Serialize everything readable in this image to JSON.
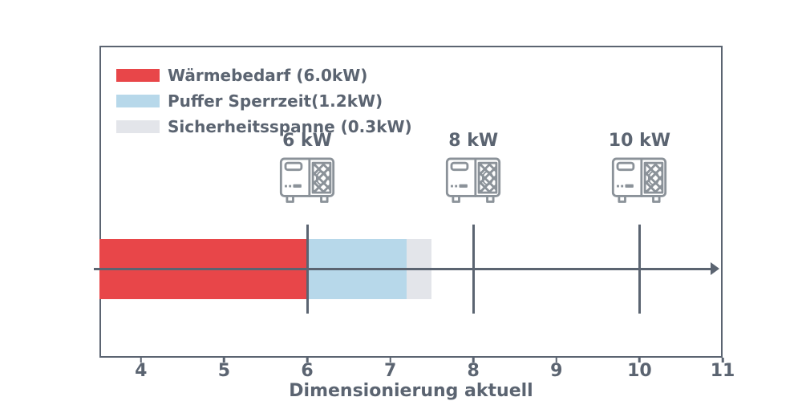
{
  "chart_data": {
    "type": "bar",
    "subtype": "horizontal-stacked-with-markers",
    "title": "",
    "xlabel": "Dimensionierung aktuell",
    "ylabel": "",
    "xlim": [
      3.5,
      11
    ],
    "xticks": [
      4,
      5,
      6,
      7,
      8,
      9,
      10,
      11
    ],
    "grid": false,
    "legend_position": "upper-left",
    "segments": [
      {
        "label": "Wärmebedarf (6.0kW)",
        "value_kw": 6.0,
        "draw_from": 3.5,
        "draw_to": 6.0,
        "color": "#e84649"
      },
      {
        "label": "Puffer Sperrzeit(1.2kW)",
        "value_kw": 1.2,
        "draw_from": 6.0,
        "draw_to": 7.2,
        "color": "#b7d8ea"
      },
      {
        "label": "Sicherheitsspanne (0.3kW)",
        "value_kw": 0.3,
        "draw_from": 7.2,
        "draw_to": 7.5,
        "color": "#e3e5ea"
      }
    ],
    "markers": [
      {
        "label": "6 kW",
        "x": 6
      },
      {
        "label": "8 kW",
        "x": 8
      },
      {
        "label": "10 kW",
        "x": 10
      }
    ],
    "colors": {
      "axis": "#5b6471",
      "text": "#5b6471",
      "icon": "#8b9299",
      "background": "#ffffff"
    }
  }
}
